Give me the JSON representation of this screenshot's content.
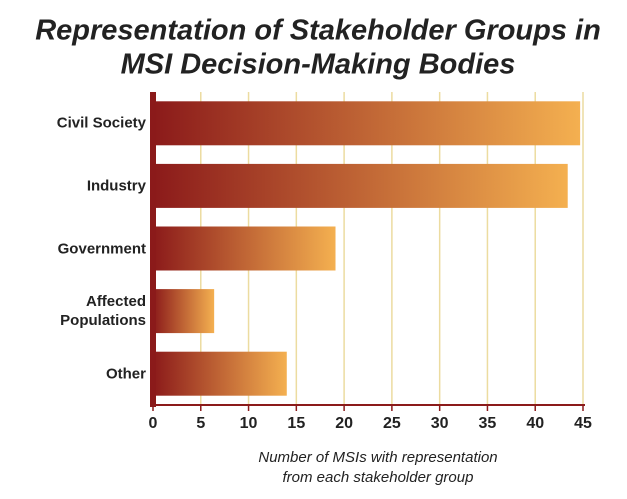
{
  "chart_data": {
    "type": "bar",
    "orientation": "horizontal",
    "title": [
      "Representation of Stakeholder Groups in",
      "MSI Decision-Making Bodies"
    ],
    "x_label": [
      "Number of MSIs with representation",
      "from each stakeholder group"
    ],
    "categories": [
      "Civil Society",
      "Industry",
      "Government",
      "Affected Populations",
      "Other"
    ],
    "values": [
      44.7,
      43.4,
      19.1,
      6.4,
      14
    ],
    "color": [
      "#8b1a1a",
      "#f4b050"
    ],
    "xlim": [
      0,
      45
    ],
    "xticks": [
      0,
      5,
      10,
      15,
      20,
      25,
      30,
      35,
      40,
      45
    ],
    "grid": true
  }
}
